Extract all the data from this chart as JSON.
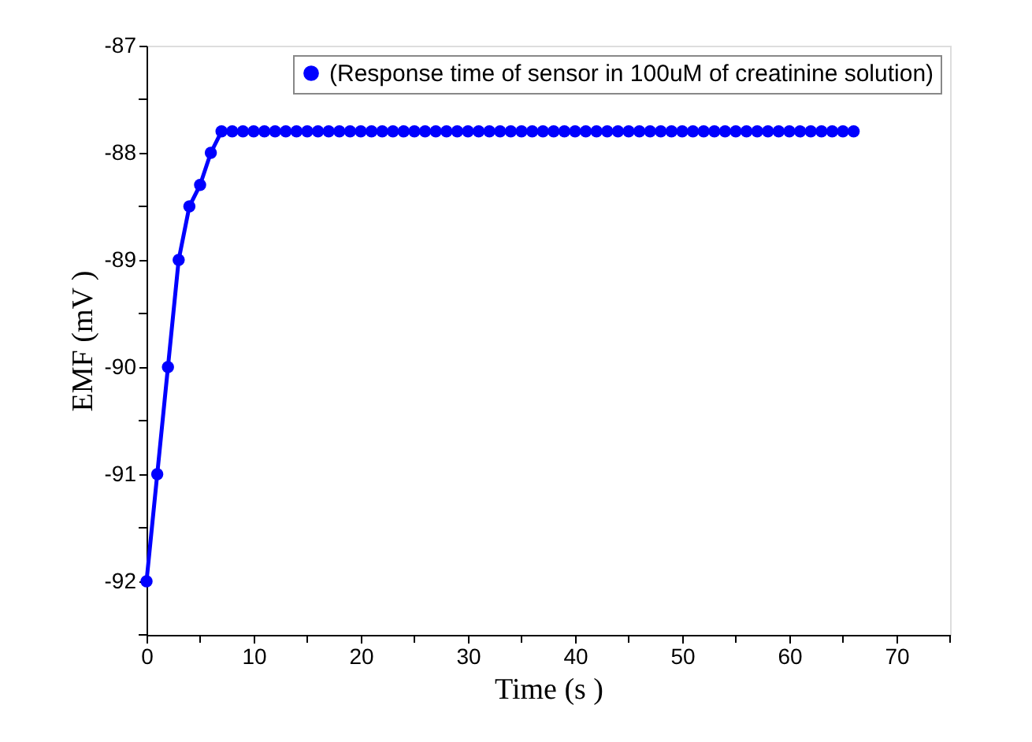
{
  "chart_data": {
    "type": "line",
    "xlabel": "Time (s )",
    "ylabel": "EMF (mV )",
    "x": [
      0,
      1,
      2,
      3,
      4,
      5,
      6,
      7,
      8,
      9,
      10,
      11,
      12,
      13,
      14,
      15,
      16,
      17,
      18,
      19,
      20,
      21,
      22,
      23,
      24,
      25,
      26,
      27,
      28,
      29,
      30,
      31,
      32,
      33,
      34,
      35,
      36,
      37,
      38,
      39,
      40,
      41,
      42,
      43,
      44,
      45,
      46,
      47,
      48,
      49,
      50,
      51,
      52,
      53,
      54,
      55,
      56,
      57,
      58,
      59,
      60,
      61,
      62,
      63,
      64,
      65,
      66
    ],
    "series": [
      {
        "name": "(Response time of sensor in 100uM of creatinine solution)",
        "color": "#0000ff",
        "values": [
          -92,
          -91,
          -90,
          -89,
          -88.5,
          -88.3,
          -88,
          -87.8,
          -87.8,
          -87.8,
          -87.8,
          -87.8,
          -87.8,
          -87.8,
          -87.8,
          -87.8,
          -87.8,
          -87.8,
          -87.8,
          -87.8,
          -87.8,
          -87.8,
          -87.8,
          -87.8,
          -87.8,
          -87.8,
          -87.8,
          -87.8,
          -87.8,
          -87.8,
          -87.8,
          -87.8,
          -87.8,
          -87.8,
          -87.8,
          -87.8,
          -87.8,
          -87.8,
          -87.8,
          -87.8,
          -87.8,
          -87.8,
          -87.8,
          -87.8,
          -87.8,
          -87.8,
          -87.8,
          -87.8,
          -87.8,
          -87.8,
          -87.8,
          -87.8,
          -87.8,
          -87.8,
          -87.8,
          -87.8,
          -87.8,
          -87.8,
          -87.8,
          -87.8,
          -87.8,
          -87.8,
          -87.8,
          -87.8,
          -87.8,
          -87.8,
          -87.8
        ]
      }
    ],
    "xlim": [
      0,
      75
    ],
    "xticks": [
      0,
      {
        "value": 5,
        "label": null
      },
      10,
      {
        "value": 15,
        "label": null
      },
      20,
      {
        "value": 25,
        "label": null
      },
      30,
      {
        "value": 35,
        "label": null
      },
      40,
      {
        "value": 45,
        "label": null
      },
      50,
      {
        "value": 55,
        "label": null
      },
      60,
      {
        "value": 65,
        "label": null
      },
      70,
      {
        "value": 75,
        "label": null
      }
    ],
    "ylim": [
      -92.5,
      -87
    ],
    "yticks": [
      {
        "value": -92.5,
        "label": null
      },
      -92,
      {
        "value": -91.5,
        "label": null
      },
      -91,
      {
        "value": -90.5,
        "label": null
      },
      -90,
      {
        "value": -89.5,
        "label": null
      },
      -89,
      {
        "value": -88.5,
        "label": null
      },
      -88,
      {
        "value": -87.5,
        "label": null
      },
      -87
    ],
    "grid": false,
    "legend": "top right",
    "marker": "circle",
    "line_style": "solid"
  }
}
